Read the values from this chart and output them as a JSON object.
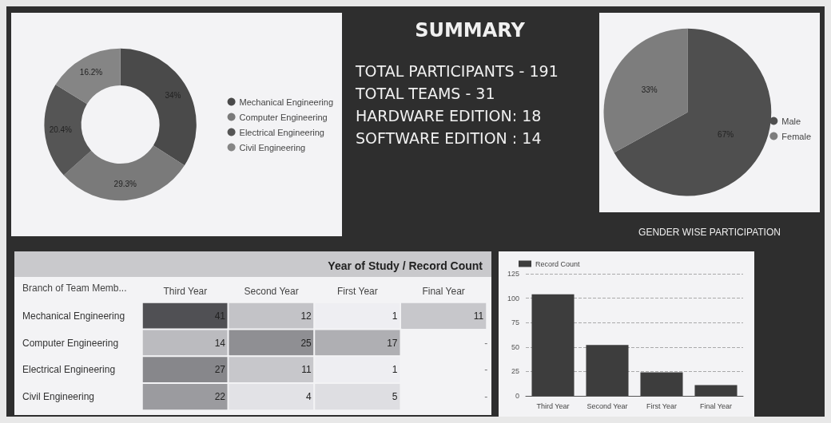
{
  "chart_data": [
    {
      "type": "donut",
      "categories": [
        "Mechanical Engineering",
        "Computer Engineering",
        "Electrical Engineering",
        "Civil Engineering"
      ],
      "values": [
        34,
        29.3,
        20.4,
        16.2
      ],
      "value_labels": [
        "34%",
        "29.3%",
        "20.4%",
        "16.2%"
      ],
      "colors": [
        "#4a4a4a",
        "#7a7a7a",
        "#555555",
        "#858585"
      ],
      "legend": "right"
    },
    {
      "type": "other",
      "title": "SUMMARY",
      "annotations": [
        "TOTAL PARTICIPANTS - 191",
        "TOTAL TEAMS -  31",
        "HARDWARE EDITION: 18",
        "SOFTWARE EDITION : 14"
      ]
    },
    {
      "type": "pie",
      "title": "GENDER WISE PARTICIPATION",
      "categories": [
        "Male",
        "Female"
      ],
      "values": [
        67,
        33
      ],
      "value_labels": [
        "67%",
        "33%"
      ],
      "colors": [
        "#4f4f4f",
        "#7d7d7d"
      ],
      "legend": "right"
    },
    {
      "type": "heatmap",
      "title": "Year of Study / Record Count",
      "ylabel": "Branch of Team Memb...",
      "categories": [
        "Third Year",
        "Second Year",
        "First Year",
        "Final Year"
      ],
      "y_categories": [
        "Mechanical Engineering",
        "Computer Engineering",
        "Electrical Engineering",
        "Civil Engineering"
      ],
      "cells": [
        [
          41,
          12,
          1,
          11
        ],
        [
          14,
          25,
          17,
          null
        ],
        [
          27,
          11,
          1,
          null
        ],
        [
          22,
          4,
          5,
          null
        ]
      ],
      "cell_labels": [
        [
          "41",
          "12",
          "1",
          "11"
        ],
        [
          "14",
          "25",
          "17",
          "-"
        ],
        [
          "27",
          "11",
          "1",
          "-"
        ],
        [
          "22",
          "4",
          "5",
          "-"
        ]
      ]
    },
    {
      "type": "bar",
      "categories": [
        "Third Year",
        "Second Year",
        "First Year",
        "Final Year"
      ],
      "series": [
        {
          "name": "Record Count",
          "color": "#3d3d3d",
          "values": [
            104,
            52,
            24,
            11
          ]
        }
      ],
      "ylim": [
        0,
        125
      ],
      "yticks": [
        0,
        25,
        50,
        75,
        100,
        125
      ],
      "grid": "y",
      "legend": "top left"
    }
  ]
}
